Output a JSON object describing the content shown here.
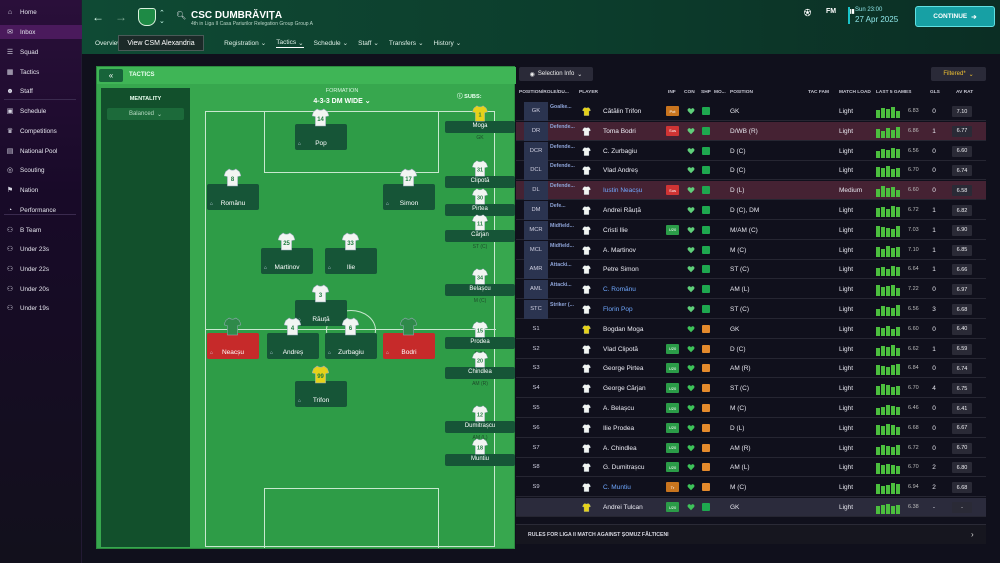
{
  "sidebar": {
    "items": [
      {
        "label": "Home",
        "icon": "home-icon"
      },
      {
        "label": "Inbox",
        "icon": "inbox-icon"
      },
      {
        "label": "Squad",
        "icon": "squad-icon"
      },
      {
        "label": "Tactics",
        "icon": "tactics-icon"
      },
      {
        "label": "Staff",
        "icon": "staff-icon"
      },
      {
        "label": "Schedule",
        "icon": "calendar-icon"
      },
      {
        "label": "Competitions",
        "icon": "trophy-icon"
      },
      {
        "label": "National Pool",
        "icon": "national-pool-icon"
      },
      {
        "label": "Scouting",
        "icon": "scouting-icon"
      },
      {
        "label": "Nation",
        "icon": "nation-icon"
      },
      {
        "label": "Performance",
        "icon": "performance-icon"
      },
      {
        "label": "B Team",
        "icon": "team-icon"
      },
      {
        "label": "Under 23s",
        "icon": "team-icon"
      },
      {
        "label": "Under 22s",
        "icon": "team-icon"
      },
      {
        "label": "Under 20s",
        "icon": "team-icon"
      },
      {
        "label": "Under 19s",
        "icon": "team-icon"
      }
    ]
  },
  "header": {
    "club_name": "CSC DUMBRĂVIȚA",
    "club_sub": "4th in Liga II Casa Pariurilor Relegation Group Group A",
    "fm_label": "FM",
    "time": "Sun 23:00",
    "date": "27 Apr 2025",
    "continue": "CONTINUE",
    "tooltip": "View CSM Alexandria",
    "nav": [
      "Overview",
      "Registration",
      "Tactics",
      "Schedule",
      "Staff",
      "Transfers",
      "History"
    ]
  },
  "tactics": {
    "title": "TACTICS",
    "mentality_label": "MENTALITY",
    "mentality_value": "Balanced",
    "formation_label": "FORMATION",
    "formation_value": "4-3-3 DM WIDE",
    "subs_label": "SUBS:",
    "starters": [
      {
        "name": "Pop",
        "num": "14"
      },
      {
        "name": "Romănu",
        "num": "8"
      },
      {
        "name": "Simon",
        "num": "17"
      },
      {
        "name": "Martinov",
        "num": "25"
      },
      {
        "name": "Ilie",
        "num": "33"
      },
      {
        "name": "Răuță",
        "num": "3"
      },
      {
        "name": "Neacșu",
        "num": ""
      },
      {
        "name": "Andreș",
        "num": "4"
      },
      {
        "name": "Zurbagiu",
        "num": "6"
      },
      {
        "name": "Bodri",
        "num": ""
      },
      {
        "name": "Trifon",
        "num": "99"
      }
    ],
    "subs": [
      {
        "name": "Moga",
        "pos": "GK",
        "num": "1"
      },
      {
        "name": "Clipotă",
        "pos": "D (C)",
        "num": "31"
      },
      {
        "name": "Pirtea",
        "pos": "AM (R)",
        "num": "30"
      },
      {
        "name": "Cărjan",
        "pos": "ST (C)",
        "num": "11"
      },
      {
        "name": "Belașcu",
        "pos": "M (C)",
        "num": "34"
      },
      {
        "name": "Prodea",
        "pos": "D (L)",
        "num": "15"
      },
      {
        "name": "Chindlea",
        "pos": "AM (R)",
        "num": "20"
      },
      {
        "name": "Dumitrașcu",
        "pos": "AM (L)",
        "num": "12"
      },
      {
        "name": "Muntiu",
        "pos": "",
        "num": "18"
      }
    ]
  },
  "squad": {
    "selection_info": "Selection Info",
    "filtered": "Filtered*",
    "columns": [
      "POSITION/ROLE/DU...",
      "PLAYER",
      "INF",
      "CON",
      "SHP",
      "MO...",
      "POSITION",
      "TAC FAM",
      "MATCH LOAD",
      "LAST 5 GAMES",
      "GLS",
      "AV RAT"
    ],
    "rows": [
      {
        "pos": "GK",
        "role": "Goalke...",
        "name": "Cătălin Trifon",
        "inf": "Pot",
        "infc": "#c8741e",
        "con": "#5fcf7a",
        "shp": "#1ea84f",
        "ppos": "GK",
        "load": "Light",
        "avg": "6.83",
        "gls": "0",
        "rat": "7.10",
        "hl": false,
        "blue": false
      },
      {
        "pos": "DR",
        "role": "Defende...",
        "name": "Toma Bodri",
        "inf": "Sus",
        "infc": "#d03434",
        "con": "#5fcf7a",
        "shp": "#1ea84f",
        "ppos": "D/WB (R)",
        "load": "Light",
        "avg": "6.86",
        "gls": "1",
        "rat": "6.77",
        "hl": true,
        "blue": false
      },
      {
        "pos": "DCR",
        "role": "Defende...",
        "name": "C. Zurbagiu",
        "inf": "",
        "infc": "",
        "con": "#5fcf7a",
        "shp": "#1ea84f",
        "ppos": "D (C)",
        "load": "Light",
        "avg": "6.56",
        "gls": "0",
        "rat": "6.60",
        "hl": false,
        "blue": false
      },
      {
        "pos": "DCL",
        "role": "Defende...",
        "name": "Vlad Andreș",
        "inf": "",
        "infc": "",
        "con": "#5fcf7a",
        "shp": "#1ea84f",
        "ppos": "D (C)",
        "load": "Light",
        "avg": "6.70",
        "gls": "0",
        "rat": "6.74",
        "hl": false,
        "blue": false
      },
      {
        "pos": "DL",
        "role": "Defende...",
        "name": "Iustin Neacșu",
        "inf": "Sus",
        "infc": "#d03434",
        "con": "#5fcf7a",
        "shp": "#1ea84f",
        "ppos": "D (L)",
        "load": "Medium",
        "avg": "6.60",
        "gls": "0",
        "rat": "6.58",
        "hl": true,
        "blue": true
      },
      {
        "pos": "DM",
        "role": "Defe...",
        "name": "Andrei Răuță",
        "inf": "",
        "infc": "",
        "con": "#5fcf7a",
        "shp": "#1ea84f",
        "ppos": "D (C), DM",
        "load": "Light",
        "avg": "6.72",
        "gls": "1",
        "rat": "6.82",
        "hl": false,
        "blue": false
      },
      {
        "pos": "MCR",
        "role": "Midfield...",
        "name": "Cristi Ilie",
        "inf": "U20",
        "infc": "#2b9c48",
        "con": "#5fcf7a",
        "shp": "#1ea84f",
        "ppos": "M/AM (C)",
        "load": "Light",
        "avg": "7.03",
        "gls": "1",
        "rat": "6.90",
        "hl": false,
        "blue": false
      },
      {
        "pos": "MCL",
        "role": "Midfield...",
        "name": "A. Martinov",
        "inf": "",
        "infc": "",
        "con": "#5fcf7a",
        "shp": "#1ea84f",
        "ppos": "M (C)",
        "load": "Light",
        "avg": "7.10",
        "gls": "1",
        "rat": "6.85",
        "hl": false,
        "blue": false
      },
      {
        "pos": "AMR",
        "role": "Attacki...",
        "name": "Petre Simon",
        "inf": "",
        "infc": "",
        "con": "#5fcf7a",
        "shp": "#1ea84f",
        "ppos": "ST (C)",
        "load": "Light",
        "avg": "6.64",
        "gls": "1",
        "rat": "6.66",
        "hl": false,
        "blue": false
      },
      {
        "pos": "AML",
        "role": "Attacki...",
        "name": "C. Romănu",
        "inf": "",
        "infc": "",
        "con": "#5fcf7a",
        "shp": "#1ea84f",
        "ppos": "AM (L)",
        "load": "Light",
        "avg": "7.22",
        "gls": "0",
        "rat": "6.97",
        "hl": false,
        "blue": true
      },
      {
        "pos": "STC",
        "role": "Striker (...",
        "name": "Florin Pop",
        "inf": "",
        "infc": "",
        "con": "#5fcf7a",
        "shp": "#1ea84f",
        "ppos": "ST (C)",
        "load": "Light",
        "avg": "6.56",
        "gls": "3",
        "rat": "6.68",
        "hl": false,
        "blue": true
      },
      {
        "pos": "S1",
        "role": "",
        "name": "Bogdan Moga",
        "inf": "",
        "infc": "",
        "con": "#3ec35a",
        "shp": "#e48a2c",
        "ppos": "GK",
        "load": "Light",
        "avg": "6.60",
        "gls": "0",
        "rat": "6.40",
        "hl": false,
        "blue": false
      },
      {
        "pos": "S2",
        "role": "",
        "name": "Vlad Clipotă",
        "inf": "U20",
        "infc": "#2b9c48",
        "con": "#3ec35a",
        "shp": "#e48a2c",
        "ppos": "D (C)",
        "load": "Light",
        "avg": "6.62",
        "gls": "1",
        "rat": "6.59",
        "hl": false,
        "blue": false
      },
      {
        "pos": "S3",
        "role": "",
        "name": "George Pirtea",
        "inf": "U20",
        "infc": "#2b9c48",
        "con": "#3ec35a",
        "shp": "#e48a2c",
        "ppos": "AM (R)",
        "load": "Light",
        "avg": "6.84",
        "gls": "0",
        "rat": "6.74",
        "hl": false,
        "blue": false
      },
      {
        "pos": "S4",
        "role": "",
        "name": "George Cărjan",
        "inf": "U20",
        "infc": "#2b9c48",
        "con": "#3ec35a",
        "shp": "#e48a2c",
        "ppos": "ST (C)",
        "load": "Light",
        "avg": "6.70",
        "gls": "4",
        "rat": "6.75",
        "hl": false,
        "blue": false
      },
      {
        "pos": "S5",
        "role": "",
        "name": "A. Belașcu",
        "inf": "U20",
        "infc": "#2b9c48",
        "con": "#3ec35a",
        "shp": "#e48a2c",
        "ppos": "M (C)",
        "load": "Light",
        "avg": "6.46",
        "gls": "0",
        "rat": "6.41",
        "hl": false,
        "blue": false
      },
      {
        "pos": "S6",
        "role": "",
        "name": "Ilie Prodea",
        "inf": "U20",
        "infc": "#2b9c48",
        "con": "#3ec35a",
        "shp": "#e48a2c",
        "ppos": "D (L)",
        "load": "Light",
        "avg": "6.68",
        "gls": "0",
        "rat": "6.67",
        "hl": false,
        "blue": false
      },
      {
        "pos": "S7",
        "role": "",
        "name": "A. Chindlea",
        "inf": "U20",
        "infc": "#2b9c48",
        "con": "#3ec35a",
        "shp": "#e48a2c",
        "ppos": "AM (R)",
        "load": "Light",
        "avg": "6.72",
        "gls": "0",
        "rat": "6.70",
        "hl": false,
        "blue": false
      },
      {
        "pos": "S8",
        "role": "",
        "name": "G. Dumitrașcu",
        "inf": "U20",
        "infc": "#2b9c48",
        "con": "#3ec35a",
        "shp": "#e48a2c",
        "ppos": "AM (L)",
        "load": "Light",
        "avg": "6.70",
        "gls": "2",
        "rat": "6.80",
        "hl": false,
        "blue": false
      },
      {
        "pos": "S9",
        "role": "",
        "name": "C. Muntiu",
        "inf": "Tr",
        "infc": "#c8741e",
        "con": "#3ec35a",
        "shp": "#e48a2c",
        "ppos": "M (C)",
        "load": "Light",
        "avg": "6.94",
        "gls": "2",
        "rat": "6.68",
        "hl": false,
        "blue": true
      },
      {
        "pos": "",
        "role": "",
        "name": "Andrei Tulcan",
        "inf": "U20",
        "infc": "#2b9c48",
        "con": "#3ec35a",
        "shp": "#1ea84f",
        "ppos": "GK",
        "load": "Light",
        "avg": "6.38",
        "gls": "-",
        "rat": "-",
        "hl": false,
        "blue": false,
        "sel": true
      }
    ],
    "footer": "RULES FOR LIGA II MATCH AGAINST ȘOMUZ FĂLTICENI"
  }
}
